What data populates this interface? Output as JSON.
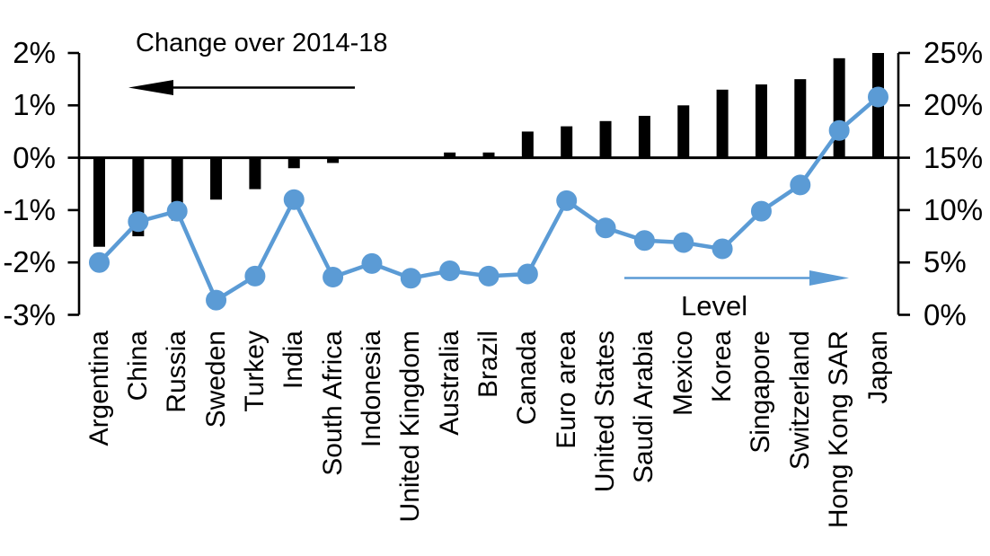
{
  "page": {
    "background": "#ffffff"
  },
  "chart_data": {
    "type": "combo-bar-line",
    "title": "",
    "categories": [
      "Argentina",
      "China",
      "Russia",
      "Sweden",
      "Turkey",
      "India",
      "South Africa",
      "Indonesia",
      "United Kingdom",
      "Australia",
      "Brazil",
      "Canada",
      "Euro area",
      "United States",
      "Saudi Arabia",
      "Mexico",
      "Korea",
      "Singapore",
      "Switzerland",
      "Hong Kong SAR",
      "Japan"
    ],
    "series": [
      {
        "name": "Change over 2014-18",
        "type": "bar",
        "axis": "left",
        "color": "#000000",
        "values": [
          -1.7,
          -1.5,
          -1.2,
          -0.8,
          -0.6,
          -0.2,
          -0.1,
          0,
          0,
          0.1,
          0.1,
          0.5,
          0.6,
          0.7,
          0.8,
          1.0,
          1.3,
          1.4,
          1.5,
          1.9,
          2.0
        ]
      },
      {
        "name": "Level",
        "type": "line",
        "axis": "right",
        "color": "#5B9BD5",
        "values": [
          5.0,
          8.9,
          9.9,
          1.4,
          3.7,
          11.0,
          3.6,
          4.9,
          3.5,
          4.2,
          3.7,
          3.9,
          10.9,
          8.3,
          7.1,
          6.9,
          6.3,
          9.9,
          12.4,
          17.6,
          20.8
        ]
      }
    ],
    "left_axis": {
      "ticks": [
        "2%",
        "1%",
        "0%",
        "-1%",
        "-2%",
        "-3%"
      ],
      "max": 2,
      "min": -3
    },
    "right_axis": {
      "ticks": [
        "25%",
        "20%",
        "15%",
        "10%",
        "5%",
        "0%"
      ],
      "max": 25,
      "min": 0
    },
    "annotations": {
      "bar_label": {
        "text": "Change over 2014-18",
        "arrow": "left",
        "color": "#000000"
      },
      "line_label": {
        "text": "Level",
        "arrow": "right",
        "color": "#5B9BD5"
      }
    },
    "layout": {
      "legend": "none",
      "grid": false,
      "zero_line": true
    }
  }
}
